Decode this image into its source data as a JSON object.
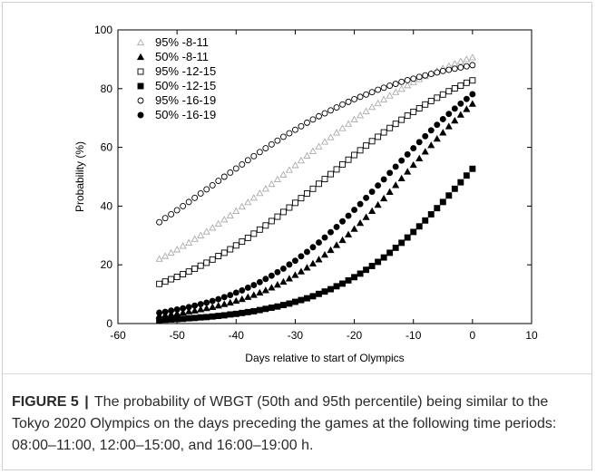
{
  "chart_data": {
    "type": "scatter",
    "title": "",
    "xlabel": "Days relative to start of Olympics",
    "ylabel": "Probability (%)",
    "xlim": [
      -60,
      10
    ],
    "ylim": [
      0,
      100
    ],
    "xticks": [
      -60,
      -50,
      -40,
      -30,
      -20,
      -10,
      0,
      10
    ],
    "yticks": [
      0,
      20,
      40,
      60,
      80,
      100
    ],
    "grid": false,
    "legend_position": "top-left",
    "x": [
      -53,
      -52,
      -51,
      -50,
      -49,
      -48,
      -47,
      -46,
      -45,
      -44,
      -43,
      -42,
      -41,
      -40,
      -39,
      -38,
      -37,
      -36,
      -35,
      -34,
      -33,
      -32,
      -31,
      -30,
      -29,
      -28,
      -27,
      -26,
      -25,
      -24,
      -23,
      -22,
      -21,
      -20,
      -19,
      -18,
      -17,
      -16,
      -15,
      -14,
      -13,
      -12,
      -11,
      -10,
      -9,
      -8,
      -7,
      -6,
      -5,
      -4,
      -3,
      -2,
      -1,
      0
    ],
    "series": [
      {
        "name": "95% -8-11",
        "marker": "triangle-open",
        "color": "#aaaaaa",
        "values": [
          22.0,
          23.0,
          24.1,
          25.2,
          26.4,
          27.5,
          28.8,
          30.0,
          31.3,
          32.6,
          34.0,
          35.4,
          36.8,
          38.3,
          39.8,
          41.3,
          42.8,
          44.4,
          45.9,
          47.5,
          49.1,
          50.7,
          52.3,
          53.9,
          55.5,
          57.1,
          58.7,
          60.3,
          61.9,
          63.4,
          65.0,
          66.5,
          68.0,
          69.5,
          70.9,
          72.3,
          73.7,
          75.0,
          76.3,
          77.6,
          78.8,
          79.9,
          81.1,
          82.2,
          83.2,
          84.2,
          85.1,
          86.0,
          86.9,
          87.7,
          88.5,
          89.3,
          90.0,
          90.6
        ]
      },
      {
        "name": "50% -8-11",
        "marker": "triangle-filled",
        "color": "#000000",
        "values": [
          2.7,
          2.9,
          3.2,
          3.4,
          3.7,
          4.1,
          4.4,
          4.8,
          5.2,
          5.6,
          6.1,
          6.6,
          7.1,
          7.7,
          8.3,
          9.0,
          9.7,
          10.5,
          11.3,
          12.2,
          13.2,
          14.2,
          15.3,
          16.5,
          17.7,
          19.0,
          20.4,
          21.8,
          23.4,
          25.0,
          26.7,
          28.4,
          30.3,
          32.2,
          34.2,
          36.2,
          38.3,
          40.4,
          42.6,
          44.8,
          47.1,
          49.4,
          51.7,
          54.0,
          56.2,
          58.5,
          60.7,
          62.9,
          65.0,
          67.1,
          69.1,
          71.1,
          73.0,
          74.8
        ]
      },
      {
        "name": "95% -12-15",
        "marker": "square-open",
        "color": "#000000",
        "values": [
          13.5,
          14.3,
          15.1,
          15.9,
          16.8,
          17.7,
          18.7,
          19.7,
          20.7,
          21.8,
          23.0,
          24.1,
          25.3,
          26.6,
          27.9,
          29.2,
          30.6,
          32.0,
          33.4,
          34.9,
          36.4,
          38.0,
          39.5,
          41.1,
          42.7,
          44.3,
          45.9,
          47.6,
          49.2,
          50.9,
          52.5,
          54.2,
          55.8,
          57.4,
          59.0,
          60.6,
          62.1,
          63.6,
          65.1,
          66.6,
          68.0,
          69.4,
          70.8,
          72.1,
          73.3,
          74.6,
          75.8,
          76.9,
          78.0,
          79.1,
          80.1,
          81.0,
          82.0,
          82.8
        ]
      },
      {
        "name": "50% -12-15",
        "marker": "square-filled",
        "color": "#000000",
        "values": [
          1.2,
          1.3,
          1.4,
          1.5,
          1.6,
          1.8,
          1.9,
          2.1,
          2.2,
          2.4,
          2.6,
          2.8,
          3.1,
          3.3,
          3.6,
          3.9,
          4.2,
          4.6,
          5.0,
          5.4,
          5.8,
          6.3,
          6.8,
          7.4,
          8.0,
          8.6,
          9.3,
          10.1,
          10.9,
          11.7,
          12.7,
          13.6,
          14.7,
          15.8,
          17.0,
          18.3,
          19.6,
          21.0,
          22.5,
          24.1,
          25.8,
          27.5,
          29.3,
          31.2,
          33.1,
          35.1,
          37.2,
          39.3,
          41.4,
          43.6,
          45.9,
          48.1,
          50.4,
          52.7
        ]
      },
      {
        "name": "95% -16-19",
        "marker": "circle-open",
        "color": "#000000",
        "values": [
          34.5,
          35.9,
          37.2,
          38.6,
          40.0,
          41.4,
          42.8,
          44.3,
          45.7,
          47.1,
          48.6,
          50.0,
          51.4,
          52.8,
          54.2,
          55.6,
          57.0,
          58.4,
          59.7,
          61.0,
          62.3,
          63.6,
          64.8,
          66.0,
          67.2,
          68.4,
          69.5,
          70.6,
          71.6,
          72.6,
          73.6,
          74.6,
          75.5,
          76.4,
          77.2,
          78.0,
          78.8,
          79.6,
          80.3,
          81.0,
          81.6,
          82.3,
          82.9,
          83.4,
          84.0,
          84.5,
          85.0,
          85.5,
          86.0,
          86.4,
          86.8,
          87.2,
          87.6,
          88.0
        ]
      },
      {
        "name": "50% -16-19",
        "marker": "circle-filled",
        "color": "#000000",
        "values": [
          3.7,
          4.0,
          4.4,
          4.8,
          5.2,
          5.6,
          6.1,
          6.6,
          7.1,
          7.7,
          8.3,
          9.0,
          9.7,
          10.5,
          11.3,
          12.2,
          13.1,
          14.1,
          15.2,
          16.3,
          17.5,
          18.7,
          20.1,
          21.4,
          22.9,
          24.4,
          26.0,
          27.6,
          29.3,
          31.1,
          32.9,
          34.8,
          36.7,
          38.7,
          40.7,
          42.8,
          44.9,
          47.0,
          49.1,
          51.3,
          53.4,
          55.5,
          57.6,
          59.7,
          61.8,
          63.8,
          65.8,
          67.7,
          69.6,
          71.4,
          73.2,
          74.9,
          76.5,
          78.1
        ]
      }
    ]
  },
  "caption": {
    "label": "FIGURE 5",
    "separator": "|",
    "text": "The probability of WBGT (50th and 95th percentile) being similar to the Tokyo 2020 Olympics on the days preceding the games at the following time periods: 08:00–11:00, 12:00–15:00, and 16:00–19:00 h."
  }
}
